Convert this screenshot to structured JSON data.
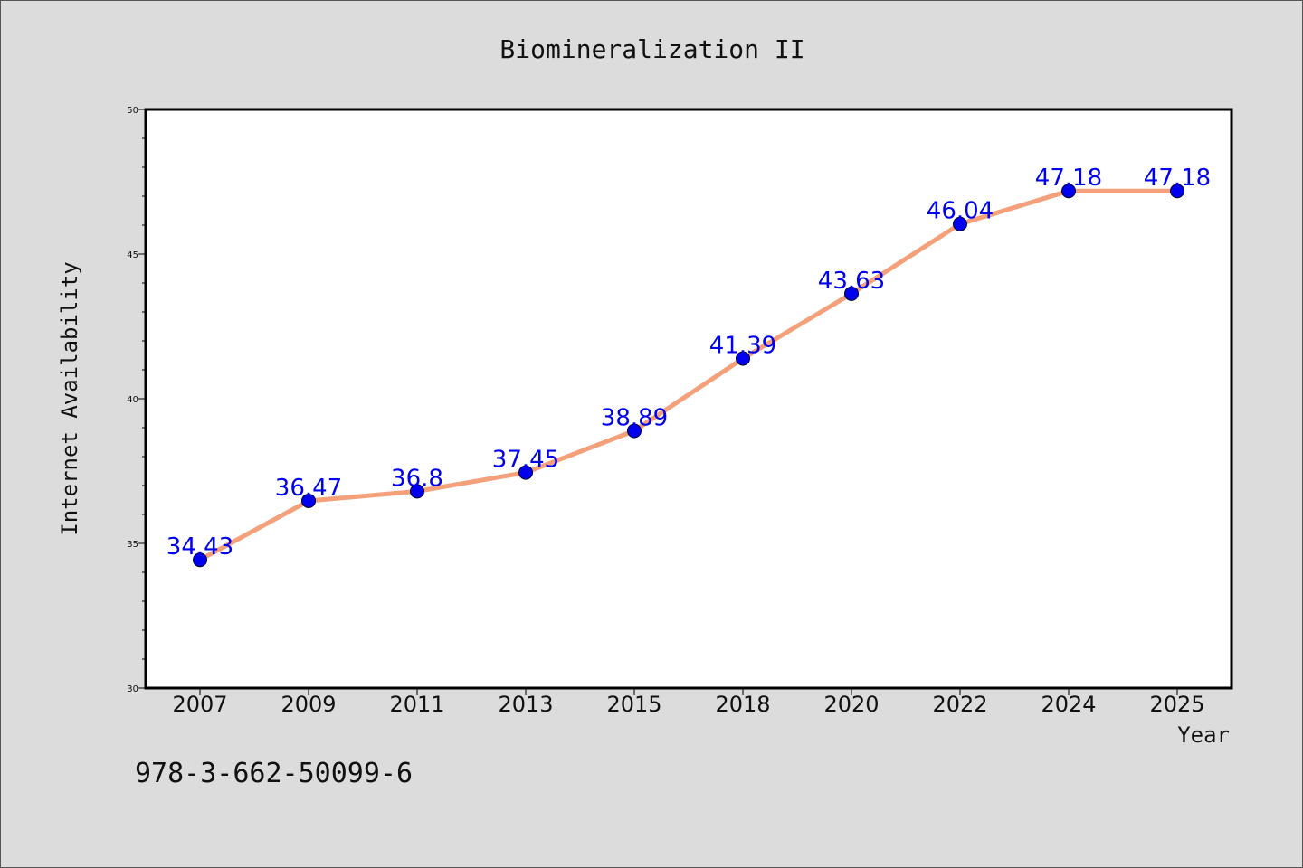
{
  "figure": {
    "footer_text": "978-3-662-50099-6"
  },
  "chart_data": {
    "type": "line",
    "title": "Biomineralization II",
    "xlabel": "Year",
    "ylabel": "Internet Availability",
    "categories": [
      "2007",
      "2009",
      "2011",
      "2013",
      "2015",
      "2018",
      "2020",
      "2022",
      "2024",
      "2025"
    ],
    "series": [
      {
        "values": [
          34.43,
          36.47,
          36.8,
          37.45,
          38.89,
          41.39,
          43.63,
          46.04,
          47.18,
          47.18
        ],
        "data_labels": [
          "34.43",
          "36.47",
          "36.8",
          "37.45",
          "38.89",
          "41.39",
          "43.63",
          "46.04",
          "47.18",
          "47.18"
        ],
        "line_color": "#f4a07a",
        "marker_color": "#0000ee"
      }
    ],
    "ylim": [
      30,
      50
    ],
    "yticks": [
      "30",
      "35",
      "40",
      "45",
      "50"
    ],
    "grid": false,
    "legend": "none",
    "plot_background": "#ffffff",
    "figure_background": "#dcdcdc"
  }
}
